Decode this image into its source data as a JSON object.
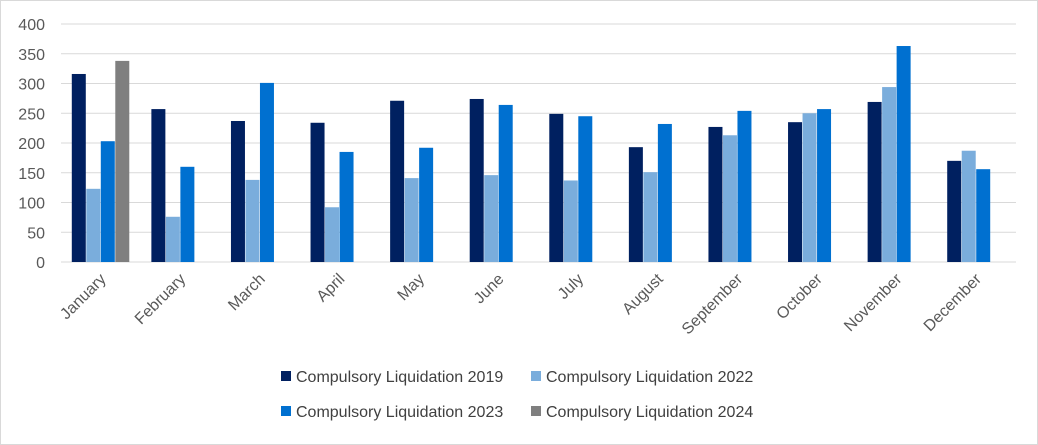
{
  "chart_data": {
    "type": "bar",
    "title": "",
    "xlabel": "",
    "ylabel": "",
    "ylim": [
      0,
      400
    ],
    "yticks": [
      0,
      50,
      100,
      150,
      200,
      250,
      300,
      350,
      400
    ],
    "grid": true,
    "legend_position": "bottom",
    "categories": [
      "January",
      "February",
      "March",
      "April",
      "May",
      "June",
      "July",
      "August",
      "September",
      "October",
      "November",
      "December"
    ],
    "series": [
      {
        "name": "Compulsory Liquidation 2019",
        "color": "#002060",
        "values": [
          316,
          257,
          237,
          234,
          271,
          274,
          249,
          193,
          227,
          235,
          269,
          170
        ]
      },
      {
        "name": "Compulsory Liquidation 2022",
        "color": "#7aaddc",
        "values": [
          123,
          76,
          138,
          92,
          141,
          146,
          137,
          151,
          213,
          250,
          294,
          187
        ]
      },
      {
        "name": "Compulsory Liquidation 2023",
        "color": "#0070d0",
        "values": [
          203,
          160,
          301,
          185,
          192,
          264,
          245,
          232,
          254,
          257,
          363,
          156
        ]
      },
      {
        "name": "Compulsory Liquidation 2024",
        "color": "#7f7f7f",
        "values": [
          338,
          null,
          null,
          null,
          null,
          null,
          null,
          null,
          null,
          null,
          null,
          null
        ]
      }
    ]
  }
}
